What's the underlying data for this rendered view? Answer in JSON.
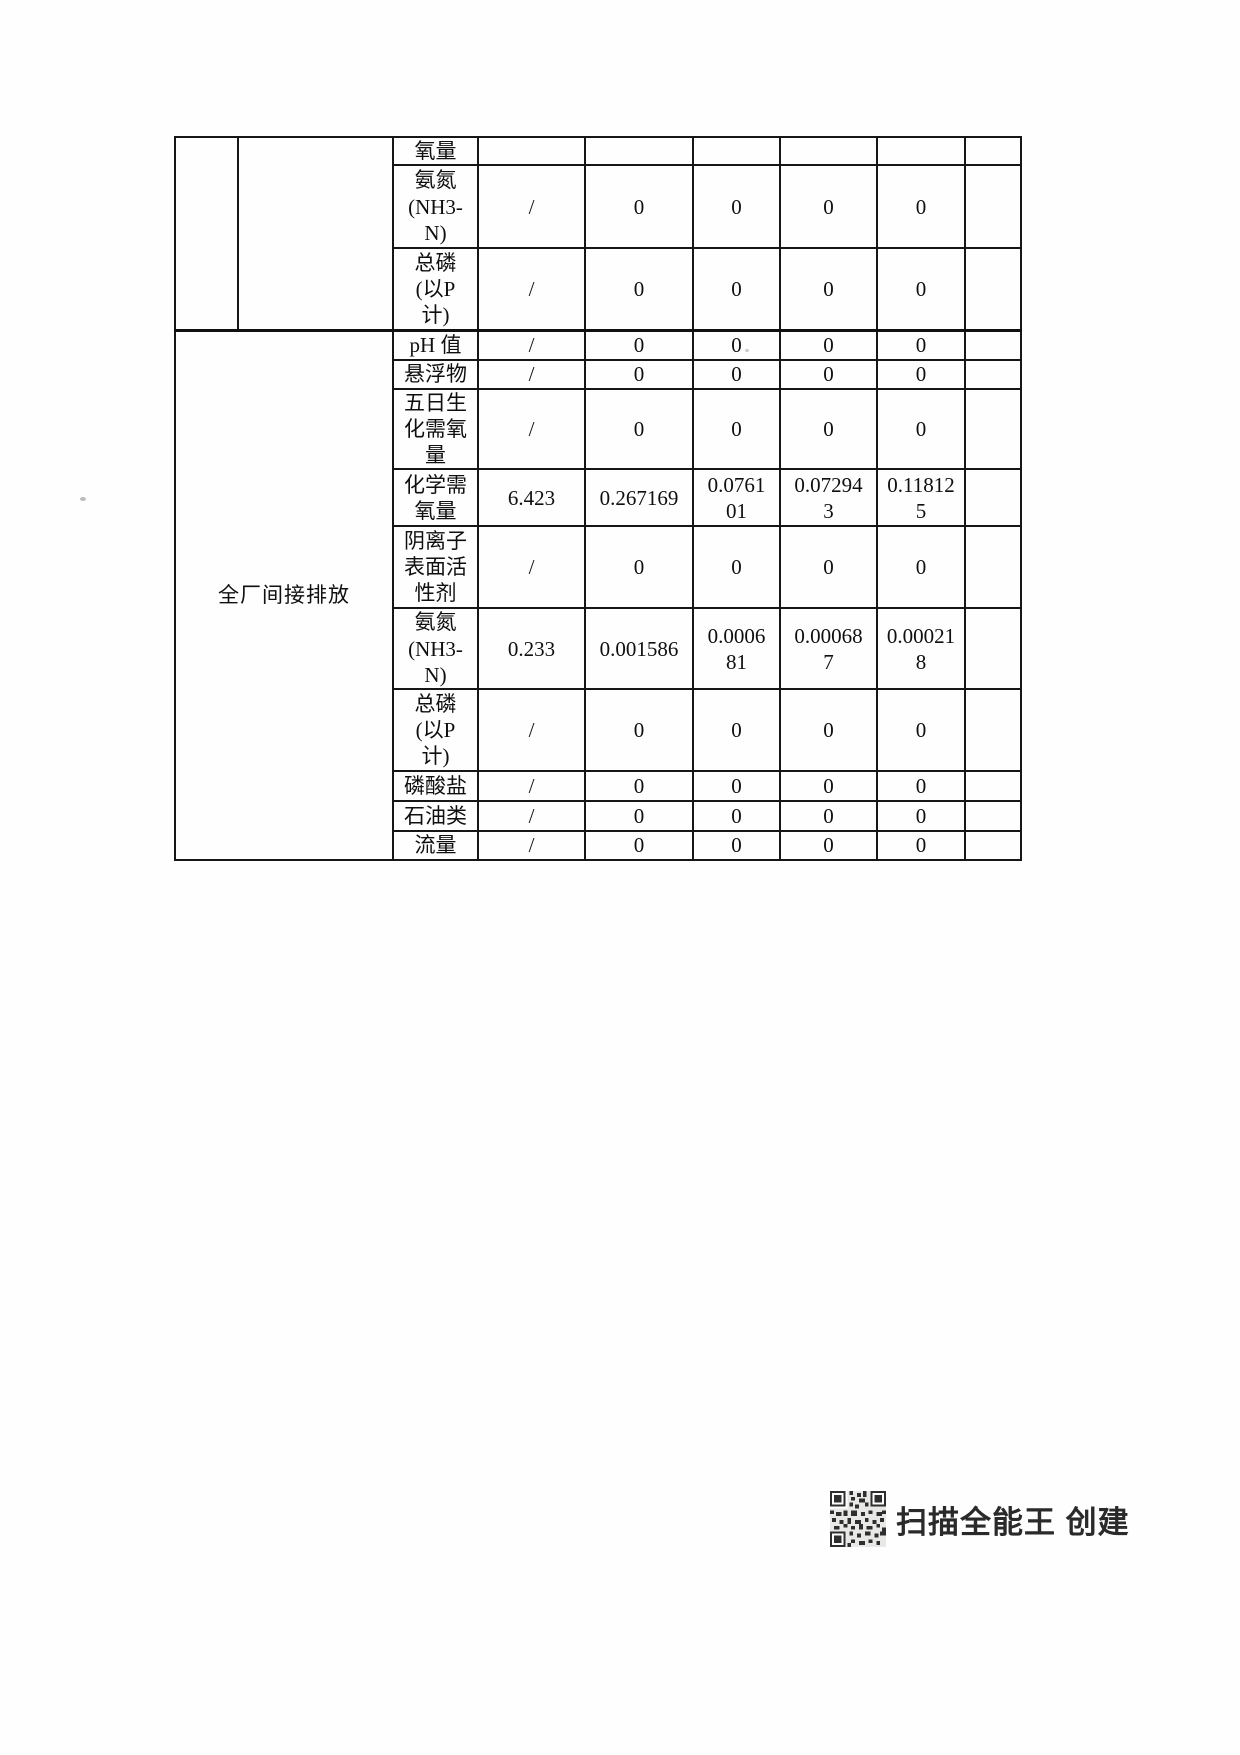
{
  "table": {
    "sections": [
      {
        "group_label": "",
        "rows": [
          {
            "param": "氧量",
            "values": [
              "",
              "",
              "",
              "",
              ""
            ]
          },
          {
            "param": "氨氮\n(NH3-\nN)",
            "values": [
              "/",
              "0",
              "0",
              "0",
              "0"
            ]
          },
          {
            "param": "总磷\n(以P\n计)",
            "values": [
              "/",
              "0",
              "0",
              "0",
              "0"
            ]
          }
        ]
      },
      {
        "group_label": "全厂间接排放",
        "rows": [
          {
            "param": "pH 值",
            "values": [
              "/",
              "0",
              "0",
              "0",
              "0"
            ]
          },
          {
            "param": "悬浮物",
            "values": [
              "/",
              "0",
              "0",
              "0",
              "0"
            ]
          },
          {
            "param": "五日生\n化需氧\n量",
            "values": [
              "/",
              "0",
              "0",
              "0",
              "0"
            ]
          },
          {
            "param": "化学需\n氧量",
            "values": [
              "6.423",
              "0.267169",
              "0.0761\n01",
              "0.07294\n3",
              "0.11812\n5"
            ]
          },
          {
            "param": "阴离子\n表面活\n性剂",
            "values": [
              "/",
              "0",
              "0",
              "0",
              "0"
            ]
          },
          {
            "param": "氨氮\n(NH3-\nN)",
            "values": [
              "0.233",
              "0.001586",
              "0.0006\n81",
              "0.00068\n7",
              "0.00021\n8"
            ]
          },
          {
            "param": "总磷\n(以P\n计)",
            "values": [
              "/",
              "0",
              "0",
              "0",
              "0"
            ]
          },
          {
            "param": "磷酸盐",
            "values": [
              "/",
              "0",
              "0",
              "0",
              "0"
            ]
          },
          {
            "param": "石油类",
            "values": [
              "/",
              "0",
              "0",
              "0",
              "0"
            ]
          },
          {
            "param": "流量",
            "values": [
              "/",
              "0",
              "0",
              "0",
              "0"
            ]
          }
        ]
      }
    ]
  },
  "watermark": {
    "text": "扫描全能王 创建",
    "qr_icon": "qr-code-icon"
  }
}
